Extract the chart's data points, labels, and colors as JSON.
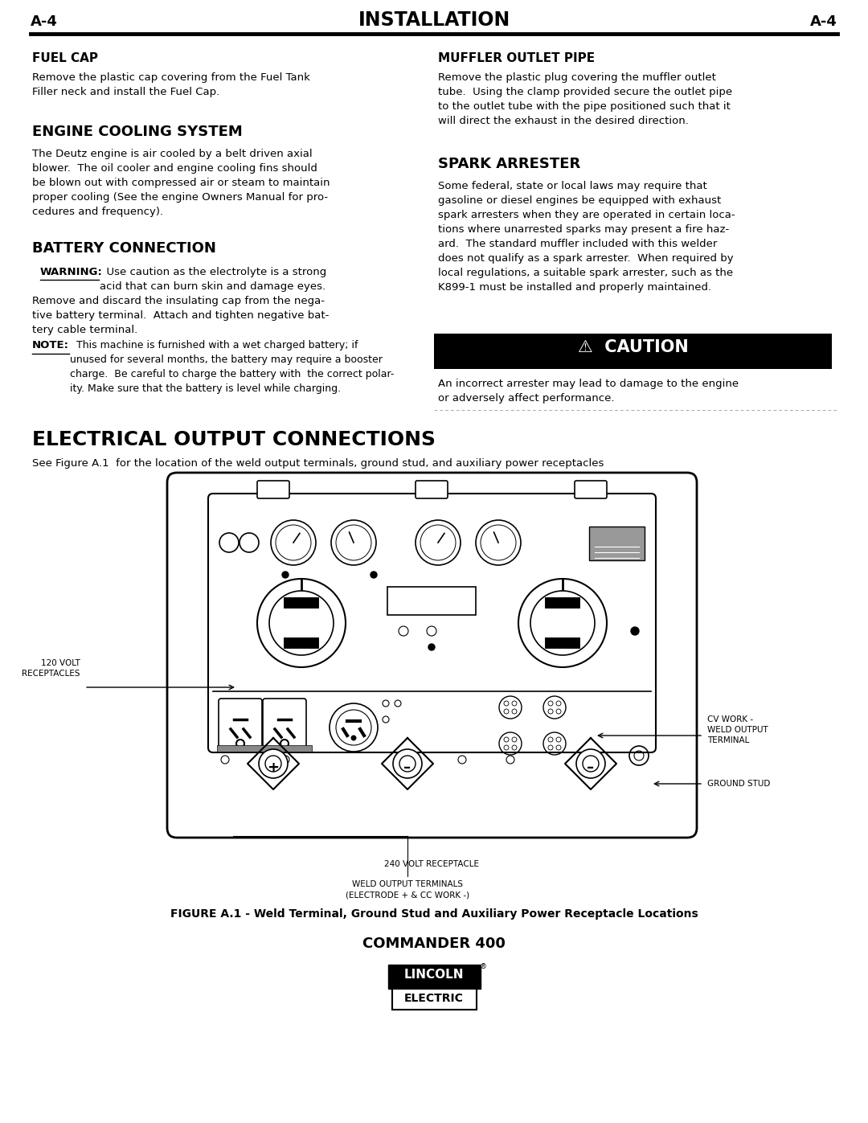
{
  "page_label": "A-4",
  "page_title": "INSTALLATION",
  "background_color": "#ffffff",
  "text_color": "#000000",
  "sections": {
    "fuel_cap_title": "FUEL CAP",
    "fuel_cap_body": "Remove the plastic cap covering from the Fuel Tank\nFiller neck and install the Fuel Cap.",
    "engine_cooling_title": "ENGINE COOLING SYSTEM",
    "engine_cooling_body": "The Deutz engine is air cooled by a belt driven axial\nblower.  The oil cooler and engine cooling fins should\nbe blown out with compressed air or steam to maintain\nproper cooling (See the engine Owners Manual for pro-\ncedures and frequency).",
    "battery_title": "BATTERY CONNECTION",
    "battery_warning_label": "WARNING:",
    "battery_warning_body": "  Use caution as the electrolyte is a strong\nacid that can burn skin and damage eyes.",
    "battery_body2": "Remove and discard the insulating cap from the nega-\ntive battery terminal.  Attach and tighten negative bat-\ntery cable terminal.",
    "battery_note_label": "NOTE:",
    "battery_note_body": "  This machine is furnished with a wet charged battery; if\nunused for several months, the battery may require a booster\ncharge.  Be careful to charge the battery with  the correct polar-\nity. Make sure that the battery is level while charging.",
    "muffler_title": "MUFFLER OUTLET PIPE",
    "muffler_body": "Remove the plastic plug covering the muffler outlet\ntube.  Using the clamp provided secure the outlet pipe\nto the outlet tube with the pipe positioned such that it\nwill direct the exhaust in the desired direction.",
    "spark_title": "SPARK ARRESTER",
    "spark_body": "Some federal, state or local laws may require that\ngasoline or diesel engines be equipped with exhaust\nspark arresters when they are operated in certain loca-\ntions where unarrested sparks may present a fire haz-\nard.  The standard muffler included with this welder\ndoes not qualify as a spark arrester.  When required by\nlocal regulations, a suitable spark arrester, such as the\nK899-1 must be installed and properly maintained.",
    "caution_text": "⚠  CAUTION",
    "caution_body": "An incorrect arrester may lead to damage to the engine\nor adversely affect performance.",
    "elec_title": "ELECTRICAL OUTPUT CONNECTIONS",
    "elec_subtitle": "See Figure A.1  for the location of the weld output terminals, ground stud, and auxiliary power receptacles",
    "figure_caption": "FIGURE A.1 - Weld Terminal, Ground Stud and Auxiliary Power Receptacle Locations",
    "model_name": "COMMANDER 400",
    "label_120v": "120 VOLT\nRECEPTACLES",
    "label_240v": "240 VOLT RECEPTACLE",
    "label_cv_work": "CV WORK -\nWELD OUTPUT\nTERMINAL",
    "label_ground_stud": "GROUND STUD",
    "label_weld_output": "WELD OUTPUT TERMINALS\n(ELECTRODE + & CC WORK -)"
  }
}
